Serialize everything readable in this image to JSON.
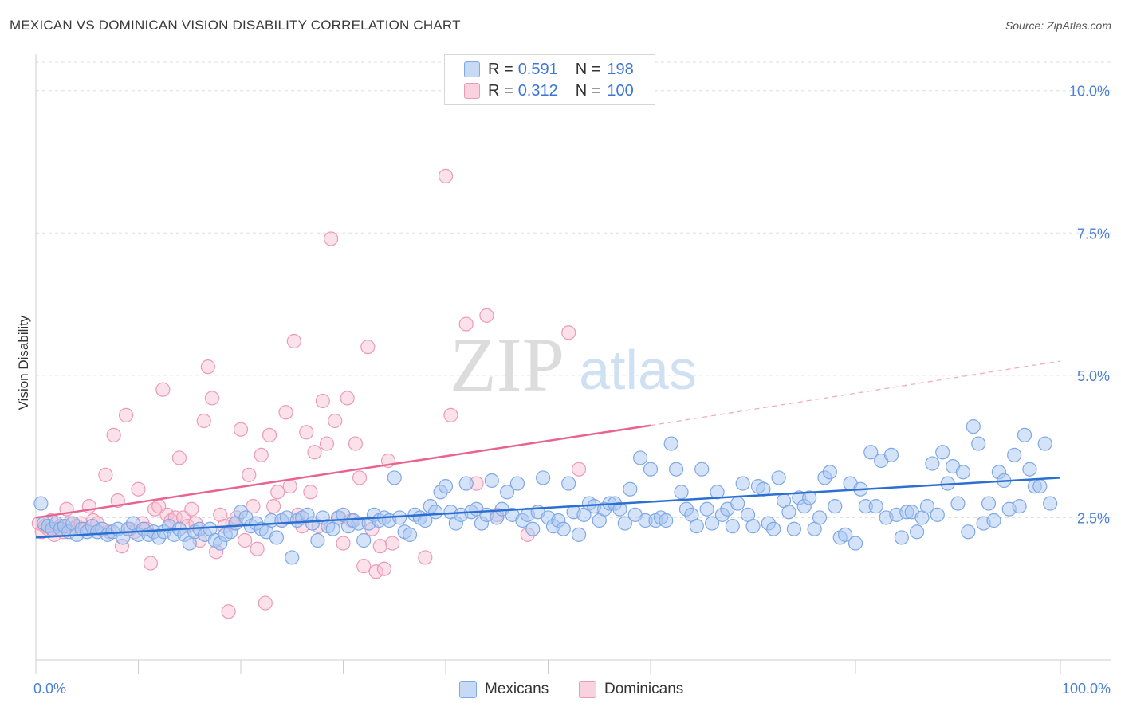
{
  "title": "MEXICAN VS DOMINICAN VISION DISABILITY CORRELATION CHART",
  "source": "Source: ZipAtlas.com",
  "watermark": {
    "zip": "ZIP",
    "atlas": "atlas"
  },
  "colors": {
    "mexicans_fill": "#a9c7f2",
    "mexicans_stroke": "#7fa8e6",
    "mexicans_line": "#2b6fd1",
    "dominicans_fill": "#f6bfd1",
    "dominicans_stroke": "#ec9ab6",
    "dominicans_line": "#e8648f",
    "tick_text": "#4a7fd6",
    "grid": "#dddddd"
  },
  "legend": {
    "rows": [
      {
        "series": "Mexicans",
        "r_label": "R =",
        "r_value": "0.591",
        "n_label": "N =",
        "n_value": "198"
      },
      {
        "series": "Dominicans",
        "r_label": "R =",
        "r_value": "0.312",
        "n_label": "N =",
        "n_value": "100"
      }
    ]
  },
  "bottom_legend": [
    "Mexicans",
    "Dominicans"
  ],
  "chart_data": {
    "type": "scatter",
    "title": "MEXICAN VS DOMINICAN VISION DISABILITY CORRELATION CHART",
    "xlabel": "",
    "ylabel": "Vision Disability",
    "xlim": [
      0,
      100
    ],
    "ylim": [
      0,
      10.5
    ],
    "x_tick_labels": [
      "0.0%",
      "100.0%"
    ],
    "y_ticks": [
      2.5,
      5.0,
      7.5,
      10.0
    ],
    "y_tick_labels": [
      "2.5%",
      "5.0%",
      "7.5%",
      "10.0%"
    ],
    "grid": "horizontal dashed",
    "legend_position": "top-center",
    "series": [
      {
        "name": "Mexicans",
        "r": 0.591,
        "n": 198,
        "trend": {
          "x": [
            0,
            100
          ],
          "y": [
            2.15,
            3.2
          ]
        },
        "points": [
          [
            0.5,
            2.75
          ],
          [
            0.8,
            2.4
          ],
          [
            1.2,
            2.35
          ],
          [
            1.6,
            2.3
          ],
          [
            2.0,
            2.4
          ],
          [
            2.4,
            2.3
          ],
          [
            2.8,
            2.35
          ],
          [
            3.2,
            2.25
          ],
          [
            3.6,
            2.4
          ],
          [
            4.0,
            2.2
          ],
          [
            4.5,
            2.3
          ],
          [
            5.0,
            2.25
          ],
          [
            5.5,
            2.35
          ],
          [
            6.0,
            2.25
          ],
          [
            6.5,
            2.3
          ],
          [
            7.0,
            2.2
          ],
          [
            7.5,
            2.25
          ],
          [
            8.0,
            2.3
          ],
          [
            8.5,
            2.15
          ],
          [
            9.0,
            2.3
          ],
          [
            9.5,
            2.4
          ],
          [
            10.0,
            2.2
          ],
          [
            10.5,
            2.3
          ],
          [
            11.0,
            2.2
          ],
          [
            11.5,
            2.25
          ],
          [
            12.0,
            2.15
          ],
          [
            12.5,
            2.25
          ],
          [
            13.0,
            2.35
          ],
          [
            13.5,
            2.2
          ],
          [
            14.0,
            2.3
          ],
          [
            14.5,
            2.2
          ],
          [
            15.0,
            2.05
          ],
          [
            15.5,
            2.25
          ],
          [
            16.0,
            2.3
          ],
          [
            16.5,
            2.2
          ],
          [
            17.0,
            2.3
          ],
          [
            17.5,
            2.1
          ],
          [
            18.0,
            2.05
          ],
          [
            18.5,
            2.2
          ],
          [
            19.0,
            2.25
          ],
          [
            19.5,
            2.4
          ],
          [
            20.0,
            2.6
          ],
          [
            20.5,
            2.5
          ],
          [
            21.0,
            2.35
          ],
          [
            21.5,
            2.4
          ],
          [
            22.0,
            2.3
          ],
          [
            22.5,
            2.25
          ],
          [
            23.0,
            2.45
          ],
          [
            23.5,
            2.15
          ],
          [
            24.0,
            2.45
          ],
          [
            24.5,
            2.5
          ],
          [
            25.0,
            1.8
          ],
          [
            25.5,
            2.45
          ],
          [
            26.0,
            2.5
          ],
          [
            26.5,
            2.55
          ],
          [
            27.0,
            2.4
          ],
          [
            27.5,
            2.1
          ],
          [
            28.0,
            2.5
          ],
          [
            28.5,
            2.35
          ],
          [
            29.0,
            2.3
          ],
          [
            29.5,
            2.5
          ],
          [
            30.0,
            2.55
          ],
          [
            30.5,
            2.35
          ],
          [
            31.0,
            2.45
          ],
          [
            31.5,
            2.4
          ],
          [
            32.0,
            2.1
          ],
          [
            32.5,
            2.4
          ],
          [
            33.0,
            2.55
          ],
          [
            33.5,
            2.45
          ],
          [
            34.0,
            2.5
          ],
          [
            34.5,
            2.45
          ],
          [
            35.0,
            3.2
          ],
          [
            35.5,
            2.5
          ],
          [
            36.0,
            2.25
          ],
          [
            36.5,
            2.2
          ],
          [
            37.0,
            2.55
          ],
          [
            37.5,
            2.5
          ],
          [
            38.0,
            2.45
          ],
          [
            38.5,
            2.7
          ],
          [
            39.0,
            2.6
          ],
          [
            39.5,
            2.95
          ],
          [
            40.0,
            3.05
          ],
          [
            40.5,
            2.6
          ],
          [
            41.0,
            2.4
          ],
          [
            41.5,
            2.55
          ],
          [
            42.0,
            3.1
          ],
          [
            42.5,
            2.6
          ],
          [
            43.0,
            2.65
          ],
          [
            43.5,
            2.4
          ],
          [
            44.0,
            2.55
          ],
          [
            44.5,
            3.15
          ],
          [
            45.0,
            2.5
          ],
          [
            45.5,
            2.65
          ],
          [
            46.0,
            2.95
          ],
          [
            46.5,
            2.55
          ],
          [
            47.0,
            3.1
          ],
          [
            47.5,
            2.45
          ],
          [
            48.0,
            2.55
          ],
          [
            48.5,
            2.3
          ],
          [
            49.0,
            2.6
          ],
          [
            49.5,
            3.2
          ],
          [
            50.0,
            2.5
          ],
          [
            50.5,
            2.35
          ],
          [
            51.0,
            2.45
          ],
          [
            51.5,
            2.3
          ],
          [
            52.0,
            3.1
          ],
          [
            52.5,
            2.6
          ],
          [
            53.0,
            2.2
          ],
          [
            53.5,
            2.55
          ],
          [
            54.0,
            2.75
          ],
          [
            54.5,
            2.7
          ],
          [
            55.0,
            2.45
          ],
          [
            55.5,
            2.65
          ],
          [
            56.0,
            2.75
          ],
          [
            56.5,
            2.75
          ],
          [
            57.0,
            2.65
          ],
          [
            57.5,
            2.4
          ],
          [
            58.0,
            3.0
          ],
          [
            58.5,
            2.55
          ],
          [
            59.0,
            3.55
          ],
          [
            59.5,
            2.45
          ],
          [
            60.0,
            3.35
          ],
          [
            60.5,
            2.45
          ],
          [
            61.0,
            2.5
          ],
          [
            61.5,
            2.45
          ],
          [
            62.0,
            3.8
          ],
          [
            62.5,
            3.35
          ],
          [
            63.0,
            2.95
          ],
          [
            63.5,
            2.65
          ],
          [
            64.0,
            2.55
          ],
          [
            64.5,
            2.35
          ],
          [
            65.0,
            3.35
          ],
          [
            65.5,
            2.65
          ],
          [
            66.0,
            2.4
          ],
          [
            66.5,
            2.95
          ],
          [
            67.0,
            2.55
          ],
          [
            67.5,
            2.65
          ],
          [
            68.0,
            2.35
          ],
          [
            68.5,
            2.75
          ],
          [
            69.0,
            3.1
          ],
          [
            69.5,
            2.55
          ],
          [
            70.0,
            2.35
          ],
          [
            70.5,
            3.05
          ],
          [
            71.0,
            3.0
          ],
          [
            71.5,
            2.4
          ],
          [
            72.0,
            2.3
          ],
          [
            72.5,
            3.2
          ],
          [
            73.0,
            2.8
          ],
          [
            73.5,
            2.6
          ],
          [
            74.0,
            2.3
          ],
          [
            74.5,
            2.85
          ],
          [
            75.0,
            2.7
          ],
          [
            75.5,
            2.85
          ],
          [
            76.0,
            2.3
          ],
          [
            76.5,
            2.5
          ],
          [
            77.0,
            3.2
          ],
          [
            77.5,
            3.3
          ],
          [
            78.0,
            2.7
          ],
          [
            78.5,
            2.15
          ],
          [
            79.0,
            2.2
          ],
          [
            79.5,
            3.1
          ],
          [
            80.0,
            2.05
          ],
          [
            80.5,
            3.0
          ],
          [
            81.0,
            2.7
          ],
          [
            81.5,
            3.65
          ],
          [
            82.0,
            2.7
          ],
          [
            82.5,
            3.5
          ],
          [
            83.0,
            2.5
          ],
          [
            83.5,
            3.6
          ],
          [
            84.0,
            2.55
          ],
          [
            84.5,
            2.15
          ],
          [
            85.0,
            2.6
          ],
          [
            85.5,
            2.6
          ],
          [
            86.0,
            2.25
          ],
          [
            86.5,
            2.5
          ],
          [
            87.0,
            2.7
          ],
          [
            87.5,
            3.45
          ],
          [
            88.0,
            2.55
          ],
          [
            88.5,
            3.65
          ],
          [
            89.0,
            3.1
          ],
          [
            89.5,
            3.4
          ],
          [
            90.0,
            2.75
          ],
          [
            90.5,
            3.3
          ],
          [
            91.0,
            2.25
          ],
          [
            91.5,
            4.1
          ],
          [
            92.0,
            3.8
          ],
          [
            92.5,
            2.4
          ],
          [
            93.0,
            2.75
          ],
          [
            93.5,
            2.45
          ],
          [
            94.0,
            3.3
          ],
          [
            94.5,
            3.15
          ],
          [
            95.0,
            2.65
          ],
          [
            95.5,
            3.6
          ],
          [
            96.0,
            2.7
          ],
          [
            96.5,
            3.95
          ],
          [
            97.0,
            3.35
          ],
          [
            97.5,
            3.05
          ],
          [
            98.0,
            3.05
          ],
          [
            98.5,
            3.8
          ],
          [
            99.0,
            2.75
          ]
        ]
      },
      {
        "name": "Dominicans",
        "r": 0.312,
        "n": 100,
        "trend": {
          "x": [
            0,
            60
          ],
          "y": [
            2.5,
            4.12
          ]
        },
        "trend_extension": {
          "x": [
            60,
            100
          ],
          "y": [
            4.12,
            5.25
          ]
        },
        "points": [
          [
            0.3,
            2.4
          ],
          [
            0.6,
            2.25
          ],
          [
            0.9,
            2.35
          ],
          [
            1.2,
            2.3
          ],
          [
            1.5,
            2.45
          ],
          [
            1.8,
            2.2
          ],
          [
            2.1,
            2.3
          ],
          [
            2.4,
            2.35
          ],
          [
            2.7,
            2.25
          ],
          [
            3.0,
            2.65
          ],
          [
            3.3,
            2.4
          ],
          [
            3.6,
            2.3
          ],
          [
            4.0,
            2.35
          ],
          [
            4.4,
            2.4
          ],
          [
            4.8,
            2.3
          ],
          [
            5.2,
            2.7
          ],
          [
            5.6,
            2.45
          ],
          [
            6.0,
            2.4
          ],
          [
            6.4,
            2.3
          ],
          [
            6.8,
            3.25
          ],
          [
            7.2,
            2.25
          ],
          [
            7.6,
            3.95
          ],
          [
            8.0,
            2.8
          ],
          [
            8.4,
            2.0
          ],
          [
            8.8,
            4.3
          ],
          [
            9.2,
            2.3
          ],
          [
            9.6,
            2.25
          ],
          [
            10.0,
            3.0
          ],
          [
            10.4,
            2.4
          ],
          [
            10.8,
            2.3
          ],
          [
            11.2,
            1.7
          ],
          [
            11.6,
            2.65
          ],
          [
            12.0,
            2.7
          ],
          [
            12.4,
            4.75
          ],
          [
            12.8,
            2.55
          ],
          [
            13.2,
            2.45
          ],
          [
            13.6,
            2.5
          ],
          [
            14.0,
            3.55
          ],
          [
            14.4,
            2.5
          ],
          [
            14.8,
            2.35
          ],
          [
            15.2,
            2.65
          ],
          [
            15.6,
            2.4
          ],
          [
            16.0,
            2.1
          ],
          [
            16.4,
            4.2
          ],
          [
            16.8,
            5.15
          ],
          [
            17.2,
            4.6
          ],
          [
            17.6,
            1.9
          ],
          [
            18.0,
            2.55
          ],
          [
            18.4,
            2.35
          ],
          [
            18.8,
            0.85
          ],
          [
            19.2,
            2.4
          ],
          [
            19.6,
            2.5
          ],
          [
            20.0,
            4.05
          ],
          [
            20.4,
            2.1
          ],
          [
            20.8,
            3.25
          ],
          [
            21.2,
            2.7
          ],
          [
            21.6,
            1.95
          ],
          [
            22.0,
            3.6
          ],
          [
            22.4,
            1.0
          ],
          [
            22.8,
            3.95
          ],
          [
            23.2,
            2.7
          ],
          [
            23.6,
            2.95
          ],
          [
            24.0,
            2.45
          ],
          [
            24.4,
            4.35
          ],
          [
            24.8,
            3.05
          ],
          [
            25.2,
            5.6
          ],
          [
            25.6,
            2.55
          ],
          [
            26.0,
            2.35
          ],
          [
            26.4,
            4.0
          ],
          [
            26.8,
            2.95
          ],
          [
            27.2,
            3.65
          ],
          [
            27.6,
            2.35
          ],
          [
            28.0,
            4.55
          ],
          [
            28.4,
            3.8
          ],
          [
            28.8,
            7.4
          ],
          [
            29.2,
            4.2
          ],
          [
            29.6,
            2.5
          ],
          [
            30.0,
            2.05
          ],
          [
            30.4,
            4.6
          ],
          [
            30.8,
            2.45
          ],
          [
            31.2,
            3.8
          ],
          [
            31.6,
            3.2
          ],
          [
            32.0,
            1.65
          ],
          [
            32.4,
            5.5
          ],
          [
            32.8,
            2.3
          ],
          [
            33.2,
            1.55
          ],
          [
            33.6,
            2.0
          ],
          [
            34.0,
            1.6
          ],
          [
            34.4,
            3.5
          ],
          [
            34.8,
            2.05
          ],
          [
            38.0,
            1.8
          ],
          [
            40.0,
            8.5
          ],
          [
            40.5,
            4.3
          ],
          [
            42.0,
            5.9
          ],
          [
            43.0,
            3.1
          ],
          [
            44.0,
            6.05
          ],
          [
            45.0,
            2.55
          ],
          [
            48.0,
            2.2
          ],
          [
            52.0,
            5.75
          ],
          [
            53.0,
            3.35
          ]
        ]
      }
    ]
  }
}
